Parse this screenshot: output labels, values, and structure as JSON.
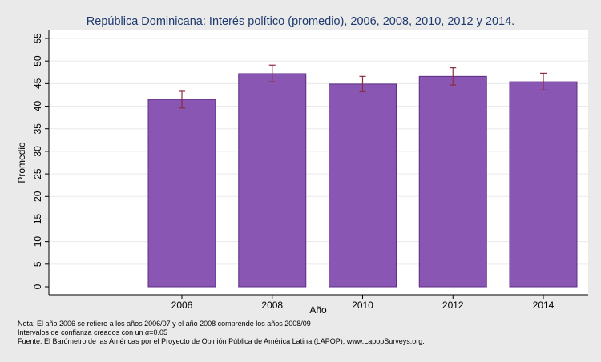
{
  "chart_data": {
    "type": "bar",
    "title": "República Dominicana: Interés político (promedio), 2006, 2008, 2010, 2012 y 2014.",
    "xlabel": "Año",
    "ylabel": "Promedio",
    "categories": [
      "2006",
      "2008",
      "2010",
      "2012",
      "2014"
    ],
    "values": [
      41.5,
      47.2,
      44.9,
      46.6,
      45.4
    ],
    "error_low": [
      39.6,
      45.4,
      43.2,
      44.7,
      43.6
    ],
    "error_high": [
      43.3,
      49.1,
      46.6,
      48.5,
      47.3
    ],
    "ylim": [
      0,
      57
    ],
    "yticks": [
      0,
      5,
      10,
      15,
      20,
      25,
      30,
      35,
      40,
      45,
      50,
      55
    ],
    "grid": true,
    "colors": {
      "bar_fill": "#8a56b4",
      "bar_stroke": "#5e2d84",
      "error_bar": "#8b2d3e",
      "plot_background": "#ffffff",
      "gridline": "#eaeaea",
      "title": "#1e3a6e"
    }
  },
  "notes": {
    "line1": "Nota: El año 2006 se refiere a los años 2006/07 y el año 2008 comprende los años 2008/09",
    "line2_prefix": "Intervalos de confianza creados con un ",
    "line2_alpha": "α",
    "line2_suffix": "=0.05",
    "line3": "Fuente: El Barómetro de las Américas por el Proyecto de Opinión Pública de América Latina (LAPOP), www.LapopSurveys.org."
  }
}
